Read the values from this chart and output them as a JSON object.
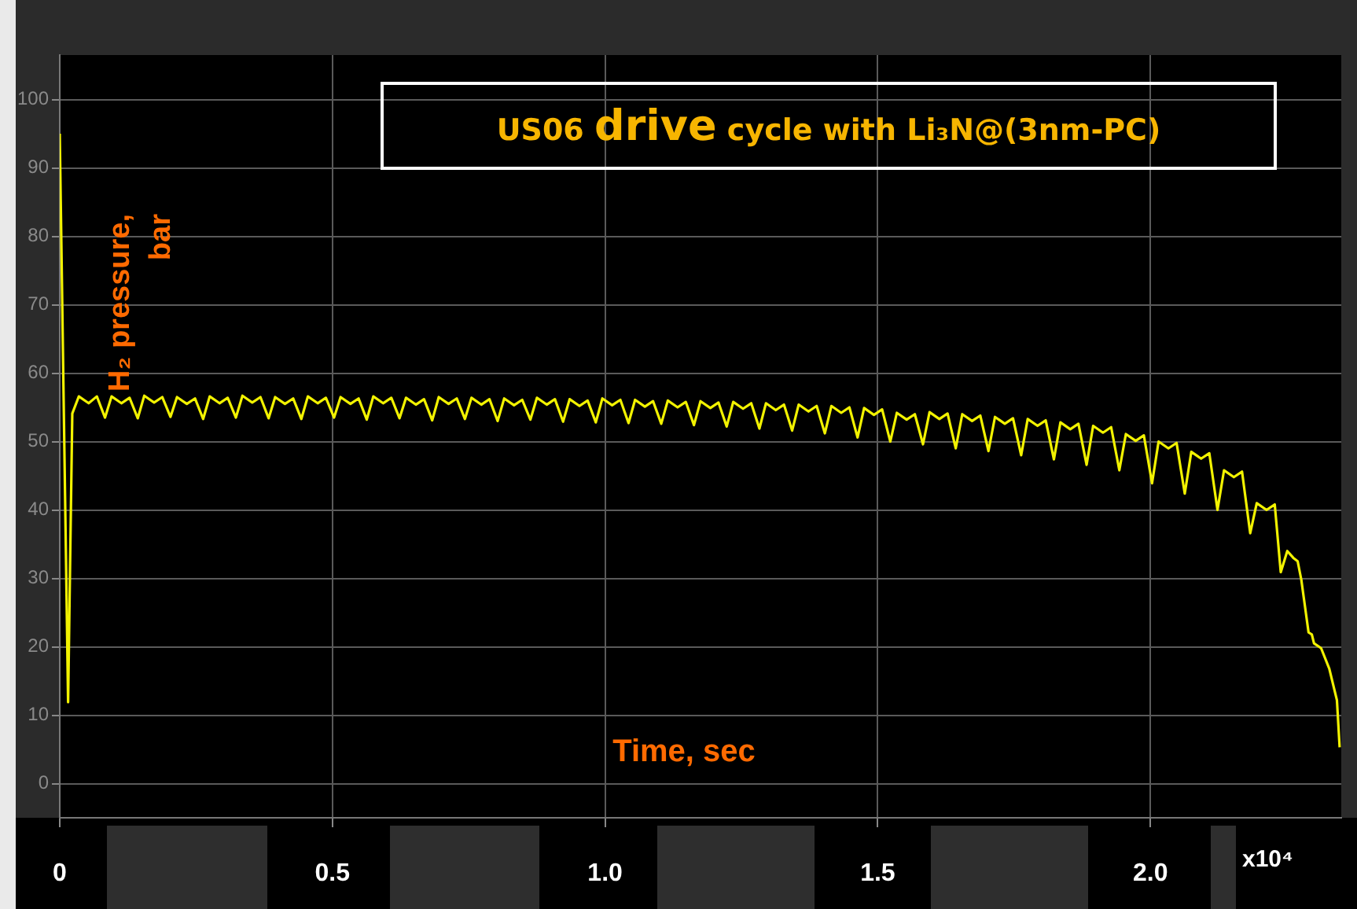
{
  "chart_data": {
    "type": "line",
    "title": "US06 drive cycle with Li₃N@(3nm-PC)",
    "xlabel": "Time, sec",
    "ylabel": "H₂ pressure, bar",
    "annotations": [
      "x10⁴"
    ],
    "xlim": [
      0,
      2.35
    ],
    "xticks": [
      0,
      0.5,
      {
        "value": 1,
        "label": "1.0"
      },
      1.5,
      {
        "value": 2,
        "label": "2.0"
      }
    ],
    "ylim": [
      -5,
      106.5
    ],
    "yticks": [
      0,
      10,
      20,
      30,
      40,
      50,
      60,
      70,
      80,
      90,
      100
    ],
    "grid": true,
    "legend": false,
    "marker": "none",
    "line_style": "solid",
    "series": [
      {
        "color": "#f2f200",
        "x": [
          0,
          0.0153,
          0.023,
          0.035,
          0.053,
          0.068,
          0.083,
          0.095,
          0.113,
          0.128,
          0.143,
          0.155,
          0.173,
          0.188,
          0.203,
          0.215,
          0.233,
          0.248,
          0.263,
          0.275,
          0.293,
          0.308,
          0.323,
          0.335,
          0.353,
          0.368,
          0.383,
          0.395,
          0.413,
          0.428,
          0.443,
          0.455,
          0.473,
          0.488,
          0.503,
          0.515,
          0.533,
          0.548,
          0.563,
          0.575,
          0.593,
          0.608,
          0.623,
          0.635,
          0.653,
          0.668,
          0.683,
          0.695,
          0.713,
          0.728,
          0.743,
          0.755,
          0.773,
          0.788,
          0.803,
          0.815,
          0.833,
          0.848,
          0.863,
          0.875,
          0.893,
          0.908,
          0.923,
          0.935,
          0.953,
          0.968,
          0.983,
          0.995,
          1.013,
          1.028,
          1.043,
          1.055,
          1.073,
          1.088,
          1.103,
          1.115,
          1.133,
          1.148,
          1.163,
          1.175,
          1.193,
          1.208,
          1.223,
          1.235,
          1.253,
          1.268,
          1.283,
          1.295,
          1.313,
          1.328,
          1.343,
          1.355,
          1.373,
          1.388,
          1.403,
          1.415,
          1.433,
          1.448,
          1.463,
          1.475,
          1.493,
          1.508,
          1.523,
          1.535,
          1.553,
          1.568,
          1.583,
          1.595,
          1.613,
          1.628,
          1.643,
          1.655,
          1.673,
          1.688,
          1.703,
          1.715,
          1.733,
          1.748,
          1.763,
          1.775,
          1.793,
          1.808,
          1.823,
          1.835,
          1.853,
          1.868,
          1.883,
          1.895,
          1.913,
          1.928,
          1.943,
          1.955,
          1.973,
          1.988,
          2.003,
          2.015,
          2.033,
          2.048,
          2.063,
          2.075,
          2.093,
          2.108,
          2.123,
          2.135,
          2.153,
          2.168,
          2.183,
          2.195,
          2.213,
          2.228,
          2.239,
          2.251,
          2.262,
          2.27,
          2.2767,
          2.29,
          2.296,
          2.3,
          2.313,
          2.328,
          2.342,
          2.347
        ],
        "values": [
          95,
          11.9,
          54.1,
          56.6,
          55.6,
          56.6,
          53.5,
          56.6,
          55.6,
          56.4,
          53.4,
          56.7,
          55.7,
          56.5,
          53.6,
          56.5,
          55.5,
          56.3,
          53.3,
          56.6,
          55.6,
          56.4,
          53.5,
          56.7,
          55.7,
          56.5,
          53.4,
          56.5,
          55.5,
          56.3,
          53.3,
          56.6,
          55.6,
          56.4,
          53.5,
          56.5,
          55.5,
          56.3,
          53.2,
          56.6,
          55.6,
          56.4,
          53.4,
          56.4,
          55.4,
          56.2,
          53.1,
          56.5,
          55.5,
          56.3,
          53.3,
          56.4,
          55.4,
          56.2,
          53.0,
          56.3,
          55.3,
          56.1,
          53.2,
          56.4,
          55.4,
          56.2,
          52.9,
          56.2,
          55.2,
          56.0,
          52.8,
          56.3,
          55.3,
          56.1,
          52.7,
          56.1,
          55.1,
          55.9,
          52.6,
          56.0,
          55.0,
          55.8,
          52.4,
          55.9,
          54.9,
          55.7,
          52.2,
          55.8,
          54.8,
          55.6,
          51.9,
          55.6,
          54.6,
          55.4,
          51.6,
          55.4,
          54.4,
          55.2,
          51.2,
          55.2,
          54.2,
          55.0,
          50.6,
          54.9,
          53.9,
          54.7,
          50.0,
          54.2,
          53.2,
          54.0,
          49.6,
          54.3,
          53.3,
          54.1,
          49.0,
          54.0,
          53.0,
          53.8,
          48.6,
          53.6,
          52.6,
          53.4,
          48.0,
          53.3,
          52.3,
          53.1,
          47.4,
          52.8,
          51.8,
          52.6,
          46.6,
          52.3,
          51.3,
          52.1,
          45.8,
          51.1,
          50.1,
          50.9,
          43.9,
          50.0,
          49.0,
          49.8,
          42.4,
          48.5,
          47.5,
          48.3,
          40.0,
          45.8,
          44.8,
          45.6,
          36.6,
          41.0,
          40.0,
          40.8,
          30.9,
          34.0,
          33.0,
          32.5,
          29.8,
          22.1,
          21.8,
          20.5,
          19.8,
          16.8,
          12.2,
          5.3
        ]
      }
    ]
  }
}
